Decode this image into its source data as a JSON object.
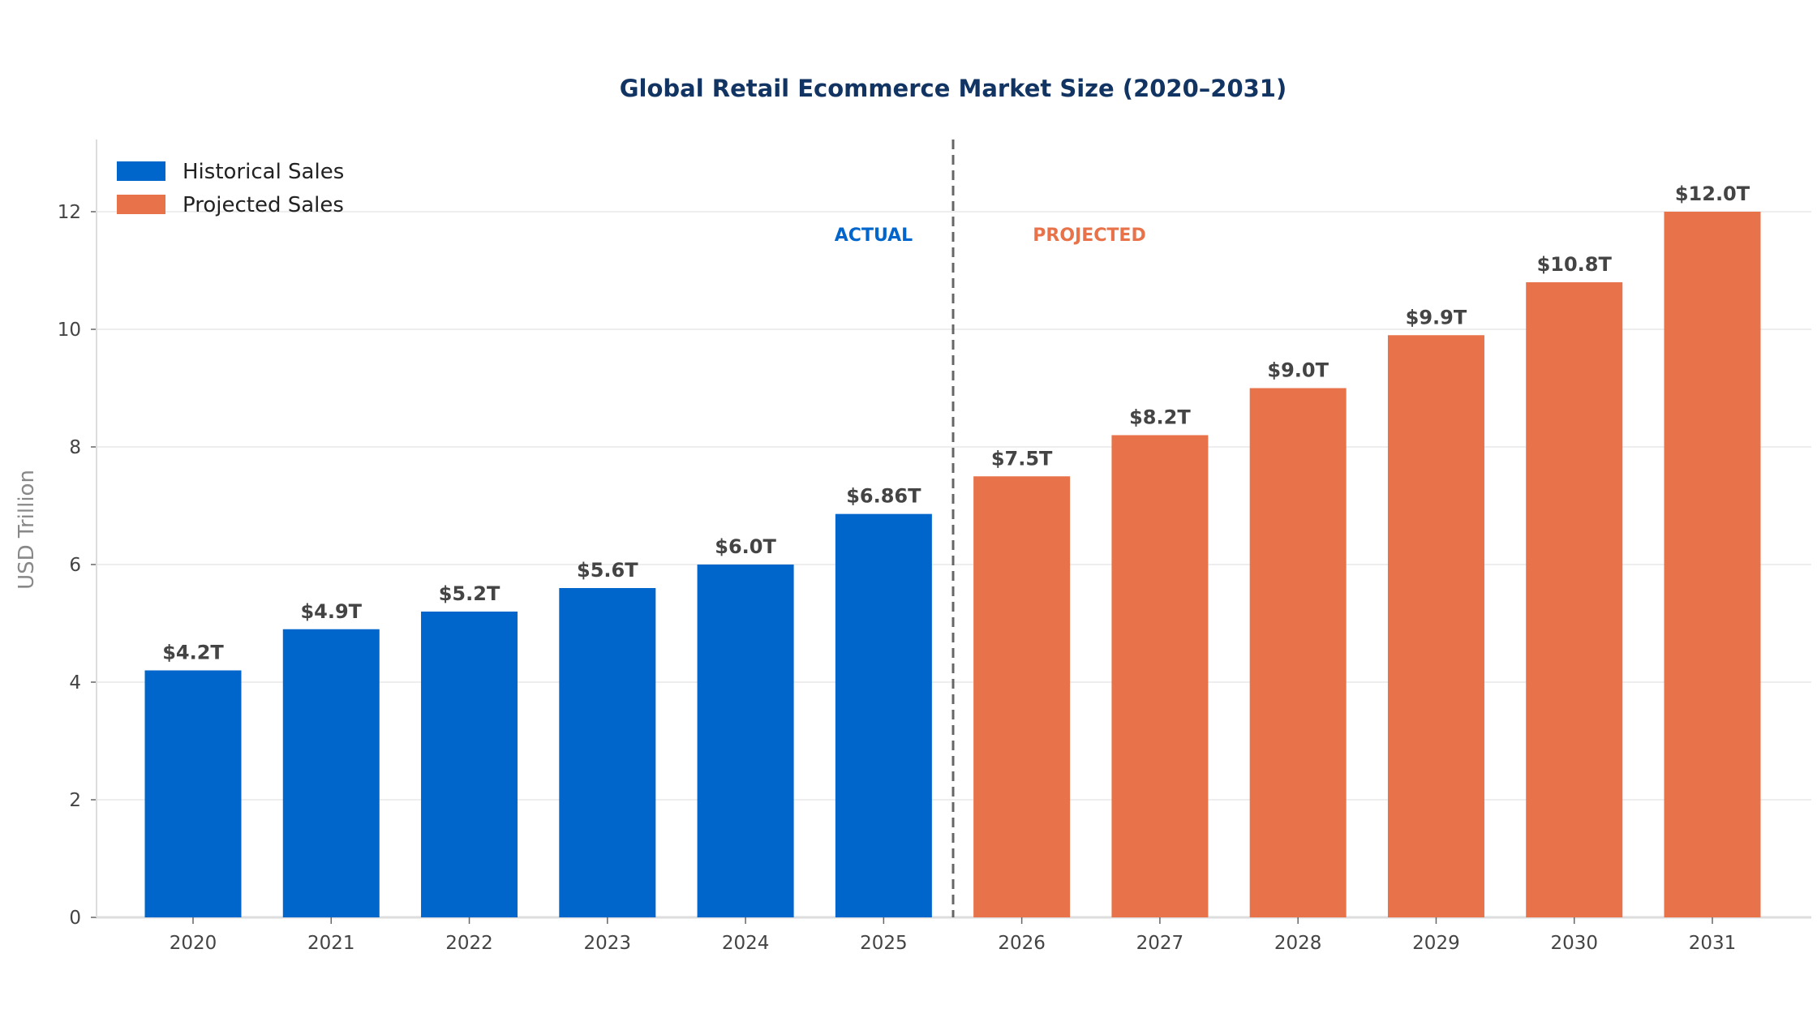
{
  "chart_data": {
    "type": "bar",
    "title": "Global Retail Ecommerce Market Size (2020–2031)",
    "xlabel": "",
    "ylabel": "USD Trillion",
    "ylim": [
      0,
      13.2
    ],
    "yticks": [
      0,
      2,
      4,
      6,
      8,
      10,
      12
    ],
    "grid": true,
    "legend_position": "top-left",
    "categories": [
      "2020",
      "2021",
      "2022",
      "2023",
      "2024",
      "2025",
      "2026",
      "2027",
      "2028",
      "2029",
      "2030",
      "2031"
    ],
    "series": [
      {
        "name": "Historical Sales",
        "color": "#0066CC",
        "values": [
          4.2,
          4.9,
          5.2,
          5.6,
          6.0,
          6.86,
          null,
          null,
          null,
          null,
          null,
          null
        ]
      },
      {
        "name": "Projected Sales",
        "color": "#E8734A",
        "values": [
          null,
          null,
          null,
          null,
          null,
          null,
          7.5,
          8.2,
          9.0,
          9.9,
          10.8,
          12.0
        ]
      }
    ],
    "data_labels": [
      "$4.2T",
      "$4.9T",
      "$5.2T",
      "$5.6T",
      "$6.0T",
      "$6.86T",
      "$7.5T",
      "$8.2T",
      "$9.0T",
      "$9.9T",
      "$10.8T",
      "$12.0T"
    ],
    "annotations": {
      "actual": {
        "text": "ACTUAL",
        "color": "#0066CC"
      },
      "projected": {
        "text": "PROJECTED",
        "color": "#E8734A"
      },
      "divider_between": [
        "2025",
        "2026"
      ]
    }
  }
}
